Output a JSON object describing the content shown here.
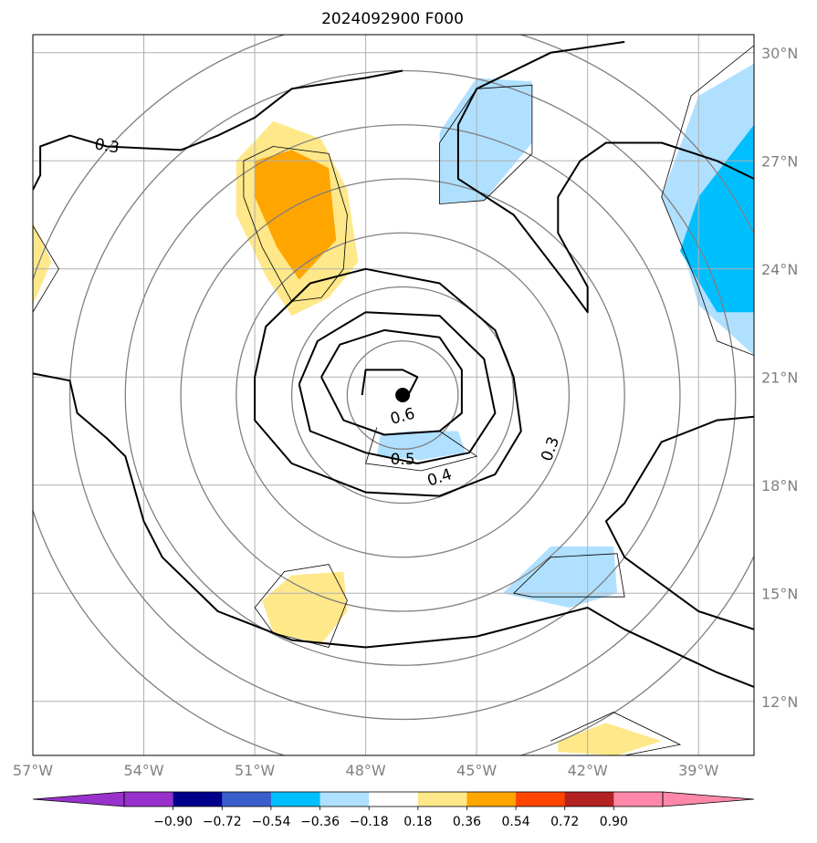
{
  "chart_data": {
    "type": "map-contour",
    "title": "2024092900 F000",
    "projection": "equirectangular",
    "lon_range": [
      -57,
      -37.5
    ],
    "lat_range": [
      10.5,
      30.5
    ],
    "x_ticks": [
      {
        "value": -57,
        "label": "57°W"
      },
      {
        "value": -54,
        "label": "54°W"
      },
      {
        "value": -51,
        "label": "51°W"
      },
      {
        "value": -48,
        "label": "48°W"
      },
      {
        "value": -45,
        "label": "45°W"
      },
      {
        "value": -42,
        "label": "42°W"
      },
      {
        "value": -39,
        "label": "39°W"
      }
    ],
    "y_ticks": [
      {
        "value": 12,
        "label": "12°N"
      },
      {
        "value": 15,
        "label": "15°N"
      },
      {
        "value": 18,
        "label": "18°N"
      },
      {
        "value": 21,
        "label": "21°N"
      },
      {
        "value": 24,
        "label": "24°N"
      },
      {
        "value": 27,
        "label": "27°N"
      },
      {
        "value": 30,
        "label": "30°N"
      }
    ],
    "grid": true,
    "center_marker": {
      "lon": -47.0,
      "lat": 20.5
    },
    "range_rings": {
      "center_lon": -47.0,
      "center_lat": 20.5,
      "radii_deg": [
        1.5,
        3,
        4.5,
        6,
        7.5,
        9,
        10.5
      ]
    },
    "contour_labels": [
      {
        "text": "0.3",
        "lon": -55.0,
        "lat": 27.4
      },
      {
        "text": "0.6",
        "lon": -47.0,
        "lat": 19.9
      },
      {
        "text": "0.5",
        "lon": -47.0,
        "lat": 18.7
      },
      {
        "text": "0.4",
        "lon": -46.0,
        "lat": 18.2
      },
      {
        "text": "0.3",
        "lon": -43.0,
        "lat": 19.0
      }
    ],
    "contour_lines": [
      [
        [
          -57,
          26.2
        ],
        [
          -56.8,
          26.6
        ],
        [
          -56.8,
          27.4
        ],
        [
          -56.0,
          27.7
        ],
        [
          -55.0,
          27.4
        ],
        [
          -53.0,
          27.3
        ],
        [
          -52.0,
          27.7
        ],
        [
          -51.0,
          28.2
        ],
        [
          -50.0,
          29.0
        ],
        [
          -48.0,
          29.3
        ],
        [
          -47.0,
          29.5
        ]
      ],
      [
        [
          -57,
          21.1
        ],
        [
          -56.0,
          20.9
        ],
        [
          -55.8,
          20.0
        ],
        [
          -55.0,
          19.3
        ],
        [
          -54.5,
          18.8
        ],
        [
          -54.0,
          17.0
        ],
        [
          -53.5,
          16.0
        ],
        [
          -52.0,
          14.5
        ],
        [
          -50.0,
          13.7
        ],
        [
          -48.0,
          13.5
        ],
        [
          -45.0,
          13.8
        ],
        [
          -42.0,
          14.6
        ],
        [
          -41.0,
          14.0
        ],
        [
          -38.5,
          12.8
        ],
        [
          -37.5,
          12.4
        ]
      ],
      [
        [
          -41.0,
          30.3
        ],
        [
          -43.0,
          30.0
        ],
        [
          -45.0,
          29.0
        ],
        [
          -45.5,
          28.0
        ],
        [
          -45.5,
          26.5
        ],
        [
          -44.0,
          25.5
        ],
        [
          -42.5,
          23.5
        ],
        [
          -42.0,
          22.8
        ],
        [
          -42.0,
          23.5
        ],
        [
          -42.8,
          25.0
        ],
        [
          -42.8,
          26.0
        ],
        [
          -42.2,
          27.0
        ],
        [
          -41.5,
          27.5
        ],
        [
          -40.0,
          27.5
        ],
        [
          -38.5,
          27.0
        ],
        [
          -37.5,
          26.5
        ]
      ],
      [
        [
          -37.5,
          19.9
        ],
        [
          -38.5,
          19.8
        ],
        [
          -40.0,
          19.2
        ],
        [
          -41.0,
          17.5
        ],
        [
          -41.5,
          17.0
        ],
        [
          -41.0,
          16.0
        ],
        [
          -39.0,
          14.5
        ],
        [
          -37.5,
          14.0
        ]
      ],
      [
        [
          -51.0,
          21.0
        ],
        [
          -50.7,
          22.4
        ],
        [
          -49.5,
          23.6
        ],
        [
          -48.0,
          24.0
        ],
        [
          -46.0,
          23.6
        ],
        [
          -44.5,
          22.3
        ],
        [
          -44.0,
          21.0
        ],
        [
          -43.8,
          19.5
        ],
        [
          -44.5,
          18.3
        ],
        [
          -46.0,
          17.7
        ],
        [
          -48.0,
          17.8
        ],
        [
          -50.0,
          18.6
        ],
        [
          -51.0,
          19.8
        ],
        [
          -51.0,
          21.0
        ]
      ],
      [
        [
          -49.8,
          20.8
        ],
        [
          -49.3,
          22.0
        ],
        [
          -48.0,
          22.8
        ],
        [
          -46.0,
          22.7
        ],
        [
          -44.8,
          21.5
        ],
        [
          -44.5,
          20.0
        ],
        [
          -45.2,
          18.9
        ],
        [
          -46.6,
          18.6
        ],
        [
          -48.0,
          18.9
        ],
        [
          -49.5,
          19.5
        ],
        [
          -49.8,
          20.8
        ]
      ],
      [
        [
          -49.2,
          21.0
        ],
        [
          -48.7,
          21.9
        ],
        [
          -47.5,
          22.3
        ],
        [
          -46.0,
          22.1
        ],
        [
          -45.4,
          21.2
        ],
        [
          -45.4,
          20.0
        ],
        [
          -46.0,
          19.5
        ],
        [
          -47.5,
          19.4
        ],
        [
          -48.6,
          19.8
        ],
        [
          -49.2,
          21.0
        ]
      ],
      [
        [
          -48.1,
          20.5
        ],
        [
          -48.0,
          21.2
        ],
        [
          -47.0,
          21.2
        ],
        [
          -46.6,
          21.0
        ],
        [
          -46.9,
          20.4
        ]
      ]
    ],
    "thin_outlines": [
      [
        [
          -50.5,
          27.4
        ],
        [
          -49.0,
          27.2
        ],
        [
          -48.5,
          25.5
        ],
        [
          -48.6,
          24.0
        ],
        [
          -49.2,
          23.2
        ],
        [
          -50.0,
          23.1
        ],
        [
          -50.8,
          24.6
        ],
        [
          -51.3,
          26.0
        ],
        [
          -51.3,
          27.0
        ],
        [
          -50.5,
          27.4
        ]
      ],
      [
        [
          -45.0,
          29.0
        ],
        [
          -43.5,
          29.1
        ],
        [
          -43.5,
          27.2
        ],
        [
          -44.8,
          25.9
        ],
        [
          -46.0,
          25.8
        ],
        [
          -46.0,
          27.5
        ],
        [
          -45.0,
          29.0
        ]
      ],
      [
        [
          -37.5,
          30.2
        ],
        [
          -39.2,
          28.8
        ],
        [
          -40.0,
          26.0
        ],
        [
          -39.0,
          23.5
        ],
        [
          -38.5,
          22.0
        ],
        [
          -37.5,
          21.6
        ]
      ],
      [
        [
          -57.0,
          25.2
        ],
        [
          -56.3,
          24.0
        ],
        [
          -57.0,
          22.8
        ]
      ],
      [
        [
          -46.0,
          19.5
        ],
        [
          -45.0,
          18.8
        ],
        [
          -46.5,
          18.4
        ],
        [
          -48.0,
          18.6
        ],
        [
          -47.7,
          19.6
        ]
      ],
      [
        [
          -44.0,
          15.0
        ],
        [
          -43.0,
          16.0
        ],
        [
          -41.2,
          16.1
        ],
        [
          -41.0,
          14.9
        ],
        [
          -43.5,
          14.9
        ],
        [
          -44.0,
          15.0
        ]
      ],
      [
        [
          -51.0,
          14.6
        ],
        [
          -50.2,
          15.6
        ],
        [
          -49.0,
          15.8
        ],
        [
          -48.5,
          14.8
        ],
        [
          -49.0,
          13.5
        ],
        [
          -50.5,
          13.9
        ],
        [
          -51.0,
          14.6
        ]
      ],
      [
        [
          -43.0,
          10.9
        ],
        [
          -41.3,
          11.7
        ],
        [
          -39.5,
          10.8
        ],
        [
          -41.0,
          10.5
        ]
      ]
    ],
    "filled_regions": [
      {
        "level": "0.18-0.36",
        "color": "#ffe88a",
        "polygon": [
          [
            -50.5,
            28.1
          ],
          [
            -49.2,
            27.6
          ],
          [
            -48.5,
            26.2
          ],
          [
            -48.2,
            24.2
          ],
          [
            -49.0,
            23.2
          ],
          [
            -50.0,
            22.7
          ],
          [
            -50.7,
            23.8
          ],
          [
            -51.5,
            25.5
          ],
          [
            -51.5,
            27.0
          ],
          [
            -50.5,
            28.1
          ]
        ]
      },
      {
        "level": "0.36-0.54",
        "color": "#ffa500",
        "polygon": [
          [
            -50.0,
            27.3
          ],
          [
            -49.0,
            26.8
          ],
          [
            -48.8,
            24.8
          ],
          [
            -49.8,
            23.7
          ],
          [
            -50.4,
            24.6
          ],
          [
            -51.0,
            26.0
          ],
          [
            -51.0,
            27.0
          ],
          [
            -50.0,
            27.3
          ]
        ]
      },
      {
        "level": "0.18-0.36",
        "color": "#ffe88a",
        "polygon": [
          [
            -50.8,
            14.8
          ],
          [
            -50.0,
            15.5
          ],
          [
            -48.6,
            15.6
          ],
          [
            -48.5,
            14.5
          ],
          [
            -49.2,
            13.6
          ],
          [
            -50.5,
            13.9
          ],
          [
            -50.8,
            14.8
          ]
        ]
      },
      {
        "level": "0.18-0.36",
        "color": "#ffe88a",
        "polygon": [
          [
            -42.8,
            10.9
          ],
          [
            -41.5,
            11.4
          ],
          [
            -40.0,
            10.9
          ],
          [
            -41.2,
            10.5
          ],
          [
            -42.8,
            10.6
          ]
        ]
      },
      {
        "level": "0.18-0.36",
        "color": "#ffe88a",
        "polygon": [
          [
            -57.0,
            25.3
          ],
          [
            -56.5,
            24.2
          ],
          [
            -57.0,
            23.0
          ]
        ]
      },
      {
        "level": "-0.36--0.18",
        "color": "#b0e0ff",
        "polygon": [
          [
            -45.0,
            29.3
          ],
          [
            -43.5,
            29.2
          ],
          [
            -43.5,
            27.5
          ],
          [
            -44.8,
            25.9
          ],
          [
            -46.0,
            25.8
          ],
          [
            -46.0,
            27.8
          ],
          [
            -45.0,
            29.3
          ]
        ]
      },
      {
        "level": "-0.36--0.18",
        "color": "#b0e0ff",
        "polygon": [
          [
            -37.5,
            29.7
          ],
          [
            -39.0,
            28.8
          ],
          [
            -40.0,
            26.0
          ],
          [
            -39.5,
            24.8
          ],
          [
            -39.0,
            23.0
          ],
          [
            -37.5,
            21.6
          ]
        ]
      },
      {
        "level": "-0.54--0.36",
        "color": "#00bfff",
        "polygon": [
          [
            -37.5,
            28.0
          ],
          [
            -39.0,
            26.0
          ],
          [
            -39.5,
            24.5
          ],
          [
            -38.5,
            22.8
          ],
          [
            -37.5,
            22.8
          ]
        ]
      },
      {
        "level": "-0.36--0.18",
        "color": "#b0e0ff",
        "polygon": [
          [
            -46.8,
            19.5
          ],
          [
            -45.5,
            19.5
          ],
          [
            -45.3,
            18.9
          ],
          [
            -46.5,
            18.7
          ],
          [
            -47.7,
            18.8
          ],
          [
            -47.6,
            19.4
          ]
        ]
      },
      {
        "level": "-0.36--0.18",
        "color": "#b0e0ff",
        "polygon": [
          [
            -44.3,
            15.0
          ],
          [
            -43.0,
            16.3
          ],
          [
            -41.3,
            16.3
          ],
          [
            -41.2,
            15.0
          ],
          [
            -42.5,
            14.6
          ],
          [
            -44.3,
            15.0
          ]
        ]
      }
    ],
    "colorbar": {
      "orientation": "horizontal",
      "extend": "both",
      "levels": [
        -1.08,
        -0.9,
        -0.72,
        -0.54,
        -0.36,
        -0.18,
        0.18,
        0.36,
        0.54,
        0.72,
        0.9,
        1.08
      ],
      "colors": [
        "#9932cc",
        "#00008b",
        "#3a5fcd",
        "#00bfff",
        "#b0e0ff",
        "#ffffff",
        "#ffe88a",
        "#ffa500",
        "#ff4500",
        "#b22222",
        "#ff88aa"
      ],
      "extend_low_color": "#9932cc",
      "extend_high_color": "#ff88aa",
      "tick_labels": [
        "−0.90",
        "−0.72",
        "−0.54",
        "−0.36",
        "−0.18",
        "0.18",
        "0.36",
        "0.54",
        "0.72",
        "0.90"
      ]
    }
  }
}
